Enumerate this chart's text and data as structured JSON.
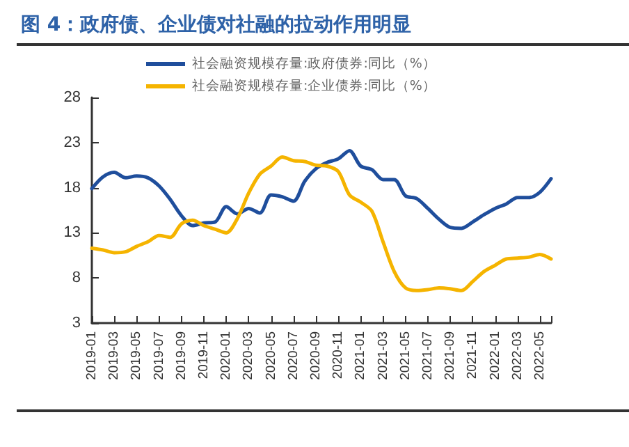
{
  "chart_data": {
    "type": "line",
    "title": "图 4：政府债、企业债对社融的拉动作用明显",
    "categories": [
      "2019-01",
      null,
      "2019-03",
      null,
      "2019-05",
      null,
      "2019-07",
      null,
      "2019-09",
      null,
      "2019-11",
      null,
      "2020-01",
      null,
      "2020-03",
      null,
      "2020-05",
      null,
      "2020-07",
      null,
      "2020-09",
      null,
      "2020-11",
      null,
      "2021-01",
      null,
      "2021-03",
      null,
      "2021-05",
      null,
      "2021-07",
      null,
      "2021-09",
      null,
      "2021-11",
      null,
      "2022-01",
      null,
      "2022-03",
      null,
      "2022-05",
      null
    ],
    "series": [
      {
        "name": "社会融资规模存量:政府债券:同比（%）",
        "color": "#1f4e9c",
        "values": [
          17.9,
          19.2,
          19.7,
          19.1,
          19.3,
          19.1,
          18.2,
          16.7,
          14.9,
          13.8,
          14.1,
          14.2,
          15.9,
          15.1,
          15.7,
          15.2,
          17.2,
          17.0,
          16.5,
          18.7,
          20.1,
          20.8,
          21.2,
          22.1,
          20.4,
          20.0,
          18.9,
          18.9,
          17.1,
          16.8,
          15.7,
          14.5,
          13.6,
          13.5,
          14.2,
          15.0,
          15.7,
          16.2,
          16.9,
          16.9,
          17.5,
          19.0
        ]
      },
      {
        "name": "社会融资规模存量:企业债券:同比（%）",
        "color": "#f5b400",
        "values": [
          11.3,
          11.1,
          10.8,
          10.9,
          11.5,
          12.0,
          12.7,
          12.5,
          14.0,
          14.4,
          13.8,
          13.4,
          13.0,
          14.6,
          17.4,
          19.5,
          20.4,
          21.4,
          21.0,
          20.9,
          20.5,
          20.4,
          19.8,
          17.2,
          16.4,
          15.4,
          12.0,
          8.7,
          6.9,
          6.6,
          6.7,
          6.9,
          6.8,
          6.6,
          7.6,
          8.7,
          9.4,
          10.1,
          10.2,
          10.3,
          10.6,
          10.1
        ]
      }
    ],
    "ylim": [
      3,
      28
    ],
    "yticks": [
      3,
      8,
      13,
      18,
      23,
      28
    ],
    "grid": false,
    "legend": "top",
    "marker": "none",
    "line_style": "solid"
  }
}
